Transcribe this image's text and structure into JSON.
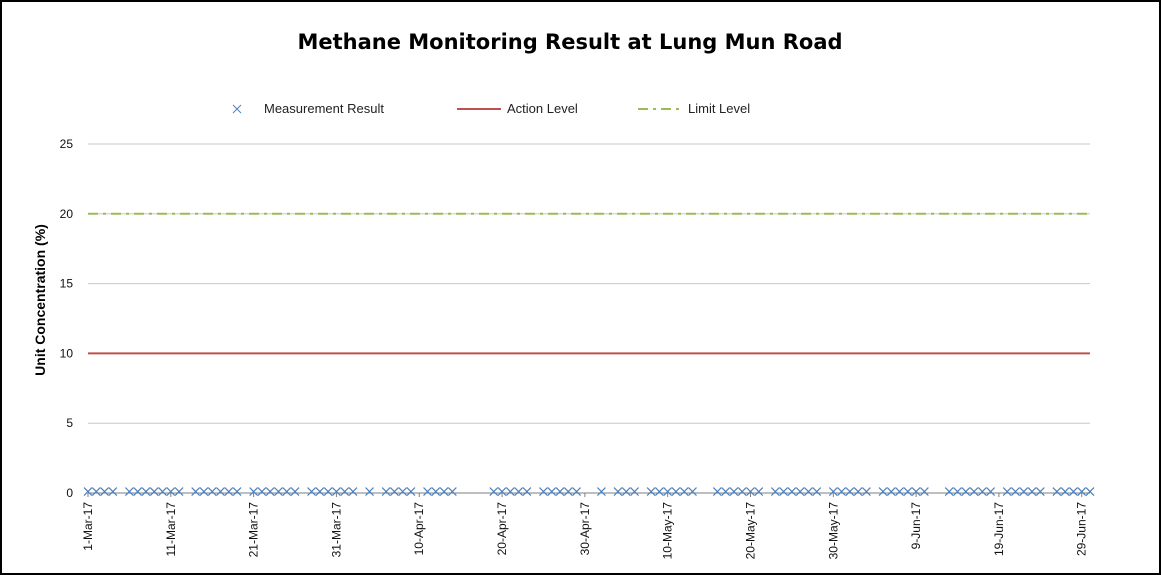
{
  "chart_data": {
    "type": "line",
    "title": "Methane Monitoring Result at Lung Mun Road",
    "ylabel": "Unit Concentration (%)",
    "xlabel": "",
    "ylim": [
      0,
      25
    ],
    "yticks": [
      0,
      5,
      10,
      15,
      20,
      25
    ],
    "grid": "horizontal",
    "legend_position": "top",
    "x_start": "1-Mar-17",
    "x_end": "30-Jun-17",
    "xticks": [
      "1-Mar-17",
      "11-Mar-17",
      "21-Mar-17",
      "31-Mar-17",
      "10-Apr-17",
      "20-Apr-17",
      "30-Apr-17",
      "10-May-17",
      "20-May-17",
      "30-May-17",
      "9-Jun-17",
      "19-Jun-17",
      "29-Jun-17"
    ],
    "series": [
      {
        "name": "Measurement Result",
        "style": "markers-x",
        "color": "#4f81bd",
        "x": [
          "1-Mar-17",
          "2-Mar-17",
          "3-Mar-17",
          "4-Mar-17",
          "6-Mar-17",
          "7-Mar-17",
          "8-Mar-17",
          "9-Mar-17",
          "10-Mar-17",
          "11-Mar-17",
          "12-Mar-17",
          "14-Mar-17",
          "15-Mar-17",
          "16-Mar-17",
          "17-Mar-17",
          "18-Mar-17",
          "19-Mar-17",
          "21-Mar-17",
          "22-Mar-17",
          "23-Mar-17",
          "24-Mar-17",
          "25-Mar-17",
          "26-Mar-17",
          "28-Mar-17",
          "29-Mar-17",
          "30-Mar-17",
          "31-Mar-17",
          "1-Apr-17",
          "2-Apr-17",
          "4-Apr-17",
          "6-Apr-17",
          "7-Apr-17",
          "8-Apr-17",
          "9-Apr-17",
          "11-Apr-17",
          "12-Apr-17",
          "13-Apr-17",
          "14-Apr-17",
          "19-Apr-17",
          "20-Apr-17",
          "21-Apr-17",
          "22-Apr-17",
          "23-Apr-17",
          "25-Apr-17",
          "26-Apr-17",
          "27-Apr-17",
          "28-Apr-17",
          "29-Apr-17",
          "2-May-17",
          "4-May-17",
          "5-May-17",
          "6-May-17",
          "8-May-17",
          "9-May-17",
          "10-May-17",
          "11-May-17",
          "12-May-17",
          "13-May-17",
          "16-May-17",
          "17-May-17",
          "18-May-17",
          "19-May-17",
          "20-May-17",
          "21-May-17",
          "23-May-17",
          "24-May-17",
          "25-May-17",
          "26-May-17",
          "27-May-17",
          "28-May-17",
          "30-May-17",
          "31-May-17",
          "1-Jun-17",
          "2-Jun-17",
          "3-Jun-17",
          "5-Jun-17",
          "6-Jun-17",
          "7-Jun-17",
          "8-Jun-17",
          "9-Jun-17",
          "10-Jun-17",
          "13-Jun-17",
          "14-Jun-17",
          "15-Jun-17",
          "16-Jun-17",
          "17-Jun-17",
          "18-Jun-17",
          "20-Jun-17",
          "21-Jun-17",
          "22-Jun-17",
          "23-Jun-17",
          "24-Jun-17",
          "26-Jun-17",
          "27-Jun-17",
          "28-Jun-17",
          "29-Jun-17",
          "30-Jun-17"
        ],
        "value": 0.1
      },
      {
        "name": "Action Level",
        "style": "solid",
        "color": "#c0504d",
        "value": 10
      },
      {
        "name": "Limit Level",
        "style": "dash-dot",
        "color": "#9bbb59",
        "value": 20
      }
    ]
  }
}
